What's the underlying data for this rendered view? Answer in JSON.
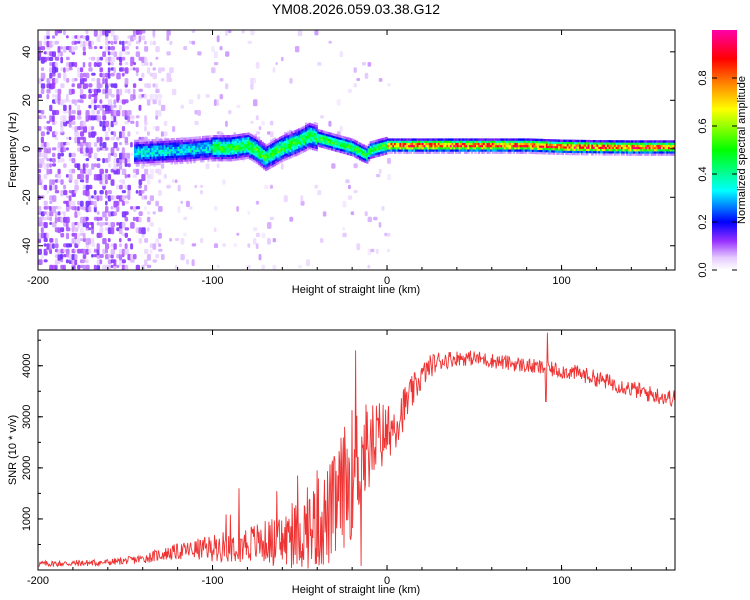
{
  "figure": {
    "title": "YM08.2026.059.03.38.G12"
  },
  "chart_data": [
    {
      "type": "heatmap",
      "name": "spectrogram",
      "title": "YM08.2026.059.03.38.G12",
      "xlabel": "Height of straight line (km)",
      "ylabel": "Frequency (Hz)",
      "xlim": [
        -200,
        165
      ],
      "ylim": [
        -50,
        49
      ],
      "xticks": [
        -200,
        -100,
        0,
        100
      ],
      "yticks": [
        -40,
        -20,
        0,
        20,
        40
      ],
      "ridge": {
        "x": [
          -145,
          -130,
          -115,
          -100,
          -90,
          -80,
          -75,
          -70,
          -60,
          -50,
          -45,
          -40,
          -35,
          -30,
          -25,
          -20,
          -15,
          -12,
          -10,
          -5,
          0,
          10,
          20,
          40,
          60,
          80,
          100,
          120,
          140,
          165
        ],
        "freq": [
          -2,
          -1.5,
          -1,
          0,
          0,
          1,
          -1,
          -4,
          0,
          3,
          5,
          4,
          3,
          2,
          1,
          0,
          -2,
          -3,
          -1,
          0,
          1,
          1,
          1,
          1,
          1,
          1,
          0.5,
          0.3,
          0.2,
          0.2
        ]
      },
      "colorbar": {
        "label": "Normalized spectral amplitude",
        "ticks": [
          0.0,
          0.2,
          0.4,
          0.6,
          0.8
        ],
        "range": [
          0,
          1
        ],
        "colors": [
          "#ffffff",
          "#e6ccff",
          "#7a00ff",
          "#0000ff",
          "#00ffff",
          "#00ff00",
          "#ffff00",
          "#ff8000",
          "#ff0000",
          "#ff00aa"
        ]
      }
    },
    {
      "type": "line",
      "name": "snr",
      "xlabel": "Height of straight line (km)",
      "ylabel": "SNR (10 * v/v)",
      "xlim": [
        -200,
        165
      ],
      "ylim": [
        0,
        4700
      ],
      "xticks": [
        -200,
        -100,
        0,
        100
      ],
      "yticks": [
        1000,
        2000,
        3000,
        4000
      ],
      "color": "#ee3333",
      "envelope": {
        "x": [
          -200,
          -180,
          -160,
          -150,
          -140,
          -130,
          -120,
          -110,
          -100,
          -90,
          -80,
          -70,
          -60,
          -50,
          -45,
          -40,
          -35,
          -30,
          -25,
          -20,
          -15,
          -10,
          -5,
          0,
          5,
          10,
          15,
          20,
          25,
          30,
          40,
          50,
          60,
          70,
          80,
          90,
          100,
          110,
          120,
          130,
          140,
          150,
          165
        ],
        "snr": [
          120,
          130,
          150,
          180,
          220,
          300,
          360,
          400,
          430,
          480,
          520,
          550,
          560,
          700,
          800,
          900,
          1000,
          1200,
          1600,
          1900,
          2200,
          2400,
          2600,
          2700,
          2900,
          3200,
          3500,
          3800,
          4000,
          4100,
          4150,
          4150,
          4100,
          4050,
          4000,
          3950,
          3900,
          3850,
          3750,
          3650,
          3550,
          3450,
          3350
        ]
      },
      "noise": {
        "x": [
          -200,
          -150,
          -130,
          -110,
          -90,
          -70,
          -60,
          -50,
          -40,
          -30,
          -20,
          -10,
          0,
          20,
          40,
          80,
          120,
          165
        ],
        "amplitude": [
          60,
          70,
          120,
          200,
          320,
          420,
          550,
          700,
          900,
          1100,
          1300,
          900,
          600,
          250,
          150,
          150,
          160,
          170
        ]
      },
      "spikes": [
        {
          "x": -18,
          "snr": 4300
        },
        {
          "x": 92,
          "snr": 4650
        },
        {
          "x": -40,
          "snr": 1950
        },
        {
          "x": -85,
          "snr": 1600
        }
      ],
      "dips": [
        {
          "x": -15,
          "snr": 80
        },
        {
          "x": 91,
          "snr": 3300
        }
      ]
    }
  ]
}
